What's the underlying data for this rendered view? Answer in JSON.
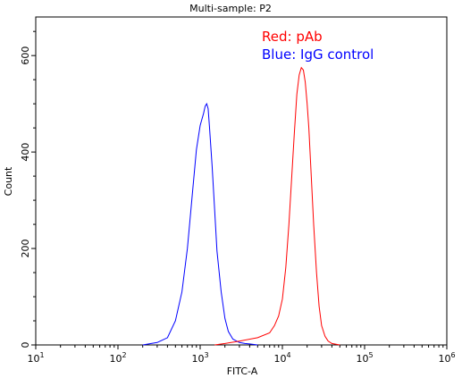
{
  "chart_data": {
    "type": "line",
    "title": "Multi-sample: P2",
    "xlabel": "FITC-A",
    "ylabel": "Count",
    "xscale": "log",
    "xlim": [
      10,
      1000000
    ],
    "ylim": [
      0,
      680
    ],
    "x_ticks": [
      {
        "value": 10,
        "base": "10",
        "exp": "1"
      },
      {
        "value": 100,
        "base": "10",
        "exp": "2"
      },
      {
        "value": 1000,
        "base": "10",
        "exp": "3"
      },
      {
        "value": 10000,
        "base": "10",
        "exp": "4"
      },
      {
        "value": 100000,
        "base": "10",
        "exp": "5"
      },
      {
        "value": 1000000,
        "base": "10",
        "exp": "6"
      }
    ],
    "y_ticks": [
      "0",
      "200",
      "400",
      "600"
    ],
    "annotations": [
      {
        "text": "Red: pAb",
        "color": "#ff0000"
      },
      {
        "text": "Blue: IgG control",
        "color": "#0000ff"
      }
    ],
    "series": [
      {
        "color": "#0000ff",
        "x": [
          200,
          300,
          400,
          500,
          600,
          700,
          800,
          900,
          1000,
          1100,
          1150,
          1200,
          1250,
          1300,
          1400,
          1500,
          1600,
          1800,
          2000,
          2200,
          2500,
          3000,
          3500,
          4000,
          5000
        ],
        "y": [
          0,
          5,
          15,
          50,
          110,
          200,
          310,
          405,
          455,
          480,
          495,
          500,
          490,
          450,
          370,
          280,
          195,
          110,
          55,
          28,
          12,
          5,
          3,
          2,
          0
        ]
      },
      {
        "color": "#ff0000",
        "x": [
          1500,
          2000,
          3000,
          5000,
          7000,
          8000,
          9000,
          10000,
          11000,
          12000,
          13000,
          14000,
          15000,
          16000,
          17000,
          18000,
          19000,
          20000,
          21000,
          22000,
          24000,
          26000,
          28000,
          30000,
          33000,
          36000,
          40000,
          50000
        ],
        "y": [
          0,
          3,
          8,
          15,
          25,
          40,
          60,
          95,
          160,
          250,
          350,
          440,
          520,
          560,
          575,
          570,
          545,
          500,
          450,
          380,
          250,
          150,
          80,
          40,
          18,
          8,
          3,
          0
        ]
      }
    ]
  }
}
